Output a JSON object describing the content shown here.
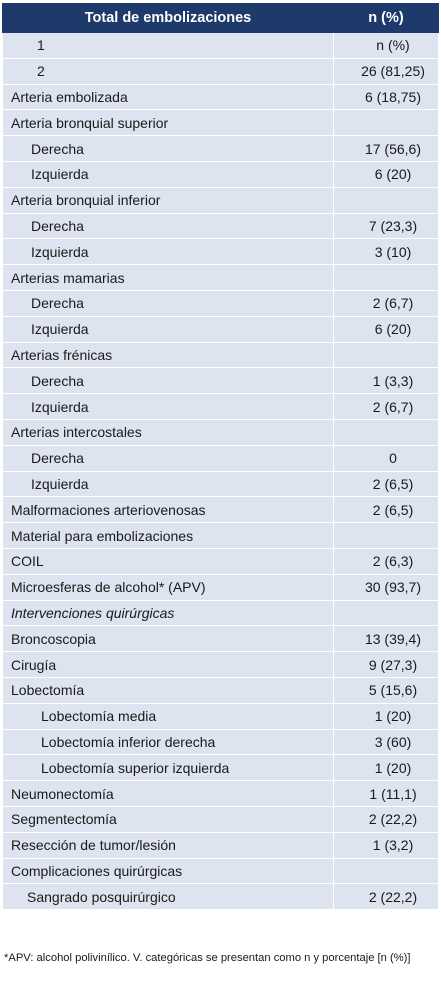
{
  "table": {
    "header": {
      "label": "Total de embolizaciones",
      "value": "n (%)"
    },
    "rows": [
      {
        "label": "1",
        "value": "n (%)",
        "indent": "num",
        "italic": false
      },
      {
        "label": "2",
        "value": "26 (81,25)",
        "indent": "num",
        "italic": false
      },
      {
        "label": "Arteria embolizada",
        "value": "6 (18,75)",
        "indent": "0",
        "italic": false
      },
      {
        "label": "Arteria bronquial superior",
        "value": "",
        "indent": "0",
        "italic": false
      },
      {
        "label": "Derecha",
        "value": "17 (56,6)",
        "indent": "1",
        "italic": false
      },
      {
        "label": "Izquierda",
        "value": "6 (20)",
        "indent": "1",
        "italic": false
      },
      {
        "label": "Arteria bronquial inferior",
        "value": "",
        "indent": "0",
        "italic": false
      },
      {
        "label": "Derecha",
        "value": "7 (23,3)",
        "indent": "1",
        "italic": false
      },
      {
        "label": "Izquierda",
        "value": "3 (10)",
        "indent": "1",
        "italic": false
      },
      {
        "label": "Arterias mamarias",
        "value": "",
        "indent": "0",
        "italic": false
      },
      {
        "label": "Derecha",
        "value": "2 (6,7)",
        "indent": "1",
        "italic": false
      },
      {
        "label": "Izquierda",
        "value": "6 (20)",
        "indent": "1",
        "italic": false
      },
      {
        "label": "Arterias frénicas",
        "value": "",
        "indent": "0",
        "italic": false
      },
      {
        "label": "Derecha",
        "value": "1 (3,3)",
        "indent": "1",
        "italic": false
      },
      {
        "label": "Izquierda",
        "value": "2 (6,7)",
        "indent": "1",
        "italic": false
      },
      {
        "label": "Arterias intercostales",
        "value": "",
        "indent": "0",
        "italic": false
      },
      {
        "label": "Derecha",
        "value": "0",
        "indent": "1",
        "italic": false
      },
      {
        "label": "Izquierda",
        "value": "2 (6,5)",
        "indent": "1",
        "italic": false
      },
      {
        "label": "Malformaciones arteriovenosas",
        "value": "2 (6,5)",
        "indent": "0",
        "italic": false
      },
      {
        "label": "Material para embolizaciones",
        "value": "",
        "indent": "0",
        "italic": false
      },
      {
        "label": "COIL",
        "value": "2 (6,3)",
        "indent": "0",
        "italic": false
      },
      {
        "label": "Microesferas de alcohol* (APV)",
        "value": "30 (93,7)",
        "indent": "0",
        "italic": false
      },
      {
        "label": "Intervenciones quirúrgicas",
        "value": "",
        "indent": "0",
        "italic": true
      },
      {
        "label": "Broncoscopia",
        "value": "13 (39,4)",
        "indent": "0",
        "italic": false
      },
      {
        "label": "Cirugía",
        "value": "9 (27,3)",
        "indent": "0",
        "italic": false
      },
      {
        "label": "Lobectomía",
        "value": "5 (15,6)",
        "indent": "0",
        "italic": false
      },
      {
        "label": "Lobectomía media",
        "value": "1 (20)",
        "indent": "2",
        "italic": false
      },
      {
        "label": "Lobectomía inferior derecha",
        "value": "3 (60)",
        "indent": "2",
        "italic": false
      },
      {
        "label": "Lobectomía superior izquierda",
        "value": "1 (20)",
        "indent": "2",
        "italic": false
      },
      {
        "label": "Neumonectomía",
        "value": "1 (11,1)",
        "indent": "0",
        "italic": false
      },
      {
        "label": "Segmentectomía",
        "value": "2 (22,2)",
        "indent": "0",
        "italic": false
      },
      {
        "label": "Resección de tumor/lesión",
        "value": "1 (3,2)",
        "indent": "0",
        "italic": false
      },
      {
        "label": "Complicaciones quirúrgicas",
        "value": "",
        "indent": "0",
        "italic": false
      },
      {
        "label": "Sangrado posquirúrgico",
        "value": "2 (22,2)",
        "indent": "h",
        "italic": false
      }
    ]
  },
  "footnote": "*APV: alcohol polivinílico. V. categóricas se presentan como n y porcentaje [n (%)]",
  "colors": {
    "header_bg": "#1d3a6b",
    "row_bg": "#dde3ef",
    "grid": "#ffffff"
  }
}
